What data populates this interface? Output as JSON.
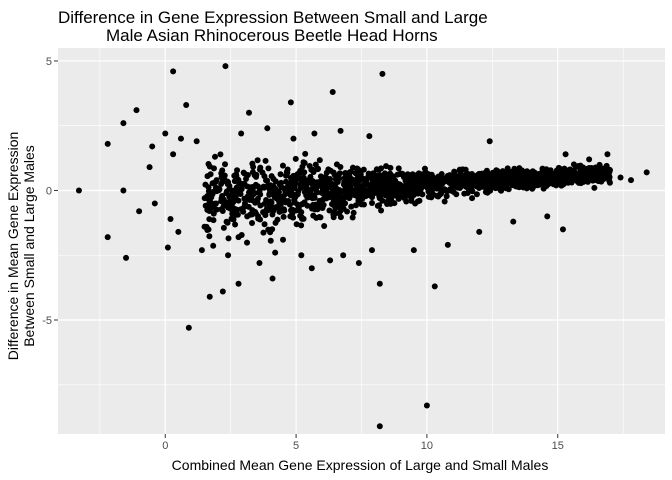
{
  "chart_data": {
    "type": "scatter",
    "title": [
      "Difference in Gene Expression Between Small and Large",
      "Male Asian Rhinocerous Beetle Head Horns"
    ],
    "xlabel": "Combined Mean Gene Expression of Large and Small Males",
    "ylabel": [
      "Difference in Mean Gene Expression",
      "Between Small and Large Males"
    ],
    "xlim": [
      -4.1,
      19.1
    ],
    "ylim": [
      -9.4,
      5.5
    ],
    "x_ticks": [
      0,
      5,
      10,
      15
    ],
    "x_tick_labels": [
      "0",
      "5",
      "10",
      "15"
    ],
    "y_ticks": [
      -5,
      0,
      5
    ],
    "y_tick_labels": [
      "-5",
      "0",
      "5"
    ],
    "grid": true,
    "legend": "none",
    "colors": {
      "panel": "#ebebeb",
      "grid": "#ffffff",
      "points": "#000000"
    },
    "points": [
      {
        "x": -3.3,
        "y": 0.0
      },
      {
        "x": -2.2,
        "y": 1.8
      },
      {
        "x": -2.2,
        "y": -1.8
      },
      {
        "x": -1.6,
        "y": 0.0
      },
      {
        "x": -1.6,
        "y": 2.6
      },
      {
        "x": -1.5,
        "y": -2.6
      },
      {
        "x": -1.1,
        "y": 3.1
      },
      {
        "x": 0.3,
        "y": 4.6
      },
      {
        "x": 0.8,
        "y": 3.3
      },
      {
        "x": 2.3,
        "y": 4.8
      },
      {
        "x": 3.2,
        "y": 3.0
      },
      {
        "x": 4.8,
        "y": 3.4
      },
      {
        "x": 6.4,
        "y": 3.8
      },
      {
        "x": 8.3,
        "y": 4.5
      },
      {
        "x": 0.9,
        "y": -5.3
      },
      {
        "x": 1.7,
        "y": -4.1
      },
      {
        "x": 2.2,
        "y": -3.9
      },
      {
        "x": 2.8,
        "y": -3.6
      },
      {
        "x": 4.1,
        "y": -3.4
      },
      {
        "x": 8.2,
        "y": -3.6
      },
      {
        "x": 10.3,
        "y": -3.7
      },
      {
        "x": 8.2,
        "y": -9.1
      },
      {
        "x": 10.0,
        "y": -8.3
      },
      {
        "x": 15.2,
        "y": -1.5
      },
      {
        "x": 18.4,
        "y": 0.7
      },
      {
        "x": 17.8,
        "y": 0.4
      },
      {
        "x": 17.4,
        "y": 0.5
      },
      {
        "x": 16.9,
        "y": 0.6
      },
      {
        "x": 16.9,
        "y": 1.4
      },
      {
        "x": 16.2,
        "y": 1.2
      },
      {
        "x": 15.3,
        "y": 1.4
      },
      {
        "x": 16.4,
        "y": 0.1
      },
      {
        "x": 0.0,
        "y": 2.2
      },
      {
        "x": 0.3,
        "y": 1.4
      },
      {
        "x": -0.5,
        "y": 1.7
      },
      {
        "x": 0.6,
        "y": 2.0
      },
      {
        "x": 1.2,
        "y": 1.9
      },
      {
        "x": 2.9,
        "y": 2.2
      },
      {
        "x": 3.9,
        "y": 2.4
      },
      {
        "x": 4.9,
        "y": 2.0
      },
      {
        "x": 5.7,
        "y": 2.2
      },
      {
        "x": 6.7,
        "y": 2.3
      },
      {
        "x": 7.8,
        "y": 2.1
      },
      {
        "x": 12.4,
        "y": 1.9
      },
      {
        "x": 0.1,
        "y": -2.2
      },
      {
        "x": 0.5,
        "y": -1.6
      },
      {
        "x": 1.4,
        "y": -2.3
      },
      {
        "x": 2.4,
        "y": -2.5
      },
      {
        "x": 2.8,
        "y": -1.8
      },
      {
        "x": 3.6,
        "y": -2.8
      },
      {
        "x": 4.2,
        "y": -2.4
      },
      {
        "x": 4.5,
        "y": -1.9
      },
      {
        "x": 5.2,
        "y": -2.5
      },
      {
        "x": 5.6,
        "y": -3.0
      },
      {
        "x": 6.3,
        "y": -2.7
      },
      {
        "x": 6.8,
        "y": -2.5
      },
      {
        "x": 7.4,
        "y": -2.8
      },
      {
        "x": 7.9,
        "y": -2.3
      },
      {
        "x": 9.5,
        "y": -2.3
      },
      {
        "x": 10.8,
        "y": -2.1
      },
      {
        "x": 12.0,
        "y": -1.6
      },
      {
        "x": 13.3,
        "y": -1.2
      },
      {
        "x": 14.6,
        "y": -1.0
      },
      {
        "x": -1.0,
        "y": -0.8
      },
      {
        "x": -0.6,
        "y": 0.9
      },
      {
        "x": -0.4,
        "y": -0.5
      },
      {
        "x": 0.2,
        "y": -1.1
      },
      {
        "x": 1.5,
        "y": -1.4
      },
      {
        "x": 1.9,
        "y": 1.3
      }
    ]
  }
}
